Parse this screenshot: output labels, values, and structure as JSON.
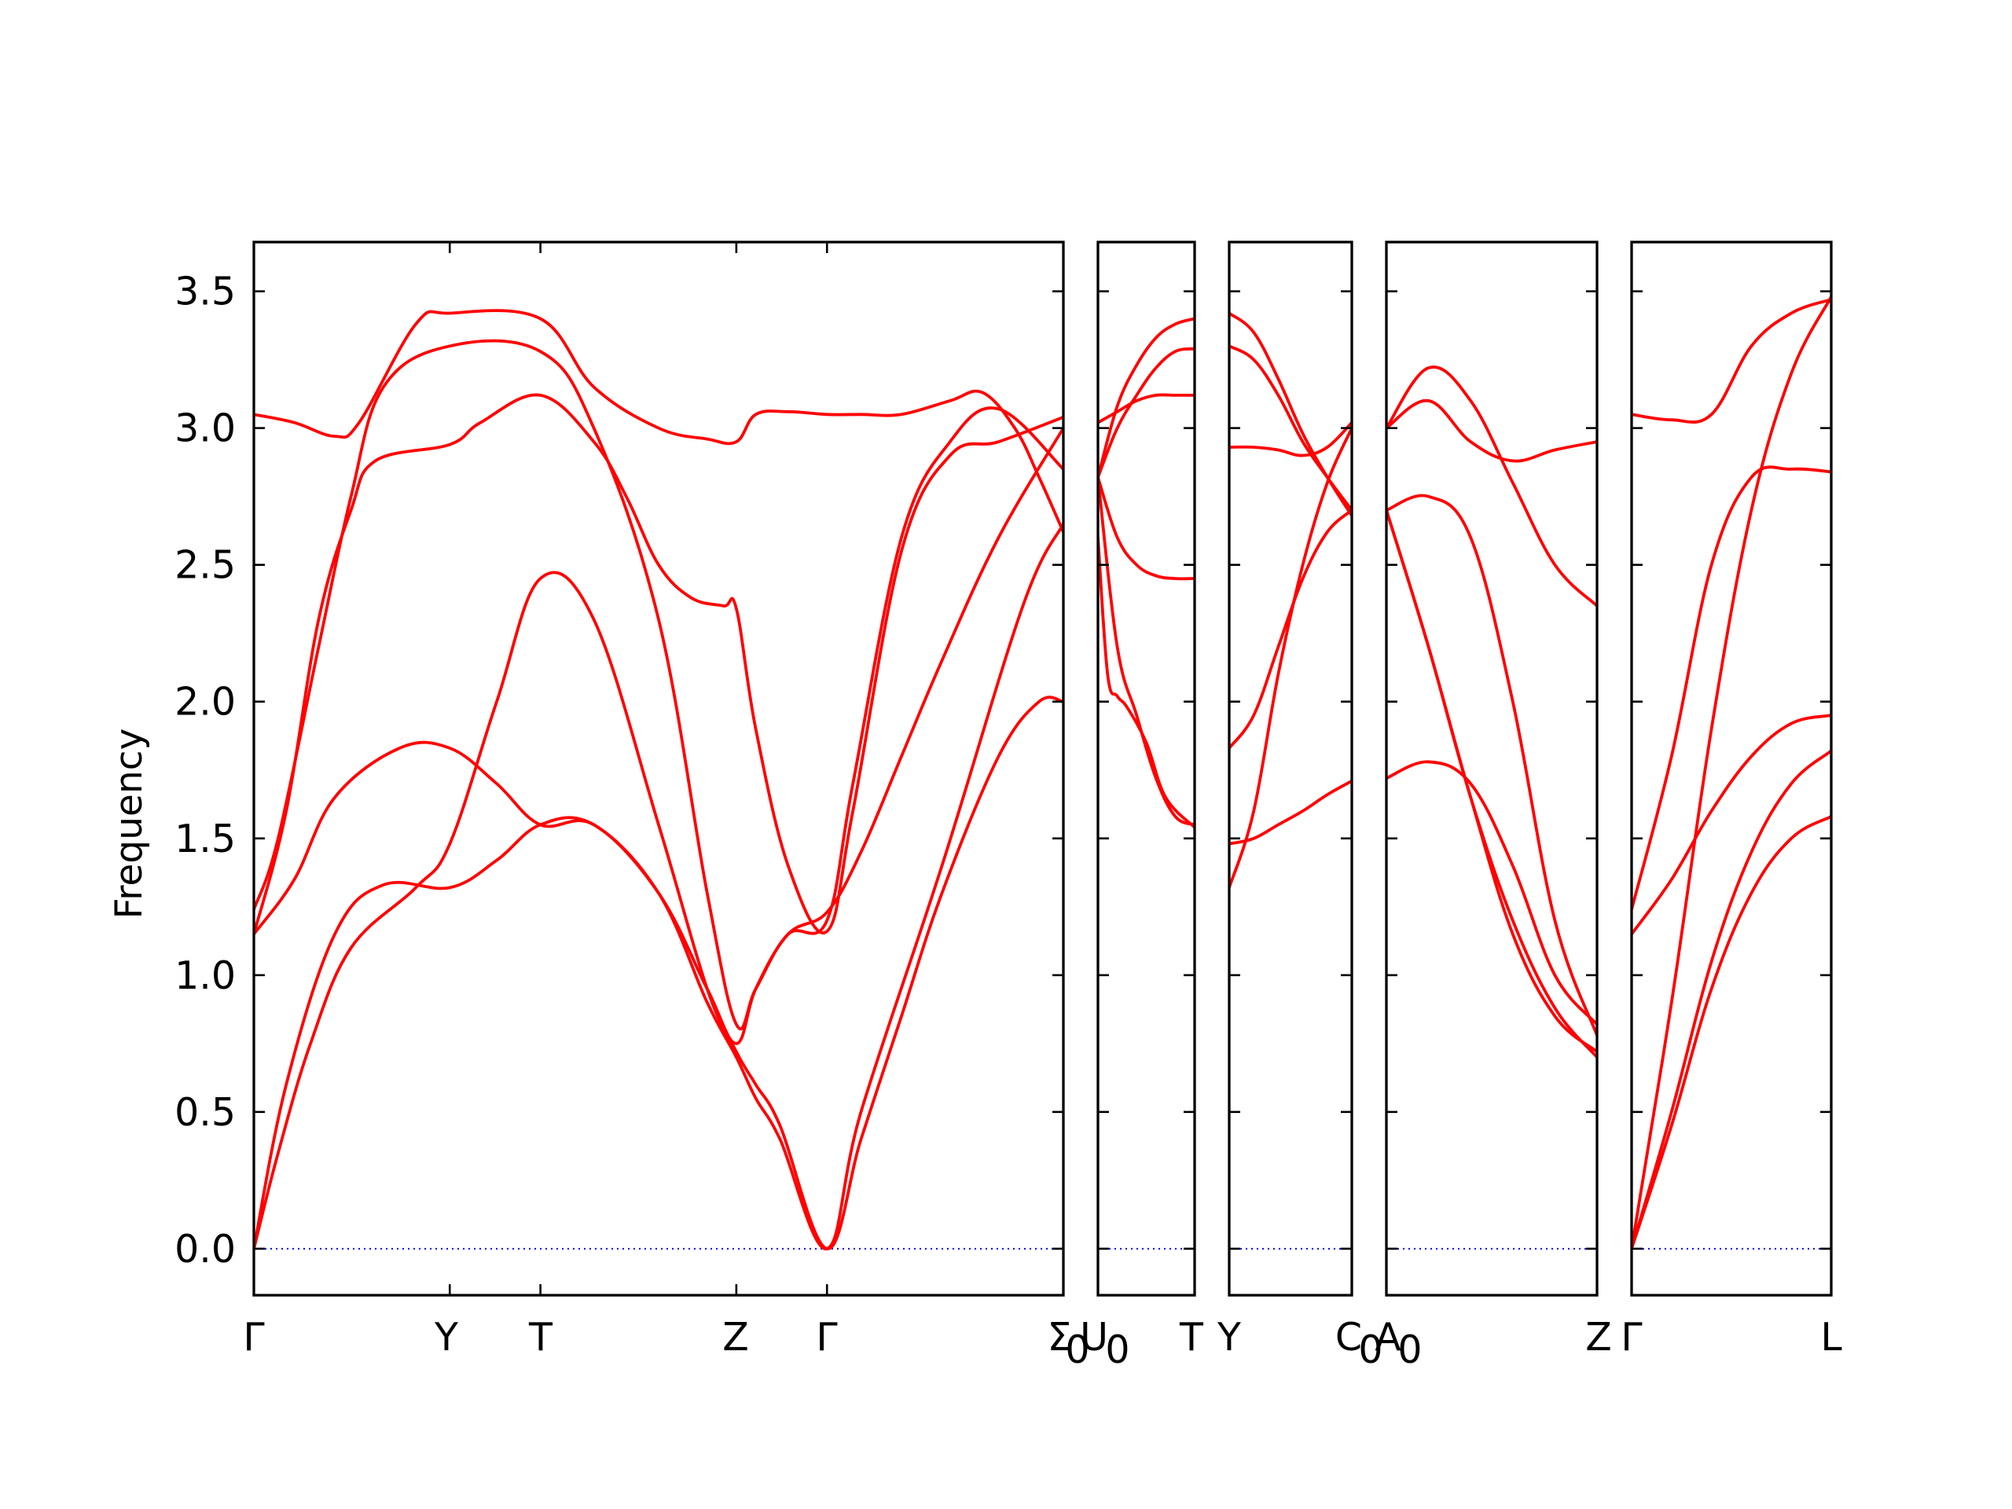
{
  "chart_data": {
    "type": "line",
    "title": "",
    "xlabel": "",
    "ylabel": "Frequency",
    "ylim": [
      -0.17,
      3.68
    ],
    "yticks": [
      "0.0",
      "0.5",
      "1.0",
      "1.5",
      "2.0",
      "2.5",
      "3.0",
      "3.5"
    ],
    "grid": false,
    "legend": "none",
    "band_color": "#ff0000",
    "zero_line_color": "#0000ff",
    "panels": [
      {
        "name": "Γ-Y-T-Z-Γ-Σ0",
        "labels": [
          "Γ",
          "Y",
          "T",
          "Z",
          "Γ",
          "Σ",
          "0"
        ],
        "x_positions": [
          0,
          0.242,
          0.354,
          0.596,
          0.708,
          1.0
        ],
        "bands": [
          {
            "x": [
              0,
              0.03,
              0.07,
              0.12,
              0.2,
              0.242,
              0.3,
              0.354,
              0.42,
              0.5,
              0.56,
              0.596,
              0.62,
              0.65,
              0.708,
              0.75,
              0.8,
              0.85,
              0.92,
              0.97,
              1.0
            ],
            "y": [
              0,
              0.35,
              0.75,
              1.1,
              1.32,
              1.48,
              2.0,
              2.45,
              2.3,
              1.55,
              0.95,
              0.72,
              0.6,
              0.45,
              0,
              0.4,
              0.85,
              1.3,
              1.8,
              2.0,
              2.0
            ]
          },
          {
            "x": [
              0,
              0.04,
              0.1,
              0.16,
              0.242,
              0.3,
              0.354,
              0.42,
              0.5,
              0.56,
              0.596,
              0.62,
              0.65,
              0.708,
              0.75,
              0.85,
              0.95,
              1.0
            ],
            "y": [
              0,
              0.6,
              1.15,
              1.33,
              1.32,
              1.42,
              1.55,
              1.55,
              1.3,
              0.9,
              0.7,
              0.55,
              0.4,
              0,
              0.5,
              1.4,
              2.35,
              2.65
            ]
          },
          {
            "x": [
              0,
              0.05,
              0.1,
              0.18,
              0.242,
              0.3,
              0.354,
              0.42,
              0.5,
              0.56,
              0.596,
              0.62,
              0.66,
              0.708,
              0.75,
              0.8,
              0.85,
              0.92,
              1.0
            ],
            "y": [
              1.15,
              1.35,
              1.65,
              1.83,
              1.83,
              1.7,
              1.55,
              1.55,
              1.3,
              0.95,
              0.75,
              0.95,
              1.15,
              1.23,
              1.45,
              1.8,
              2.15,
              2.6,
              3.0
            ]
          },
          {
            "x": [
              0,
              0.03,
              0.08,
              0.12,
              0.16,
              0.242,
              0.354,
              0.42,
              0.5,
              0.56,
              0.596,
              0.62,
              0.66,
              0.708,
              0.74,
              0.8,
              0.86,
              0.92,
              1.0
            ],
            "y": [
              1.24,
              1.5,
              2.2,
              2.75,
              3.15,
              3.3,
              3.28,
              3.0,
              2.3,
              1.3,
              0.82,
              0.95,
              1.15,
              1.2,
              1.7,
              2.6,
              2.95,
              3.07,
              2.85
            ]
          },
          {
            "x": [
              0,
              0.04,
              0.08,
              0.12,
              0.15,
              0.242,
              0.28,
              0.354,
              0.42,
              0.46,
              0.5,
              0.54,
              0.58,
              0.596,
              0.62,
              0.66,
              0.708,
              0.74,
              0.8,
              0.86,
              0.92,
              1.0
            ],
            "y": [
              1.15,
              1.6,
              2.3,
              2.7,
              2.88,
              2.94,
              3.02,
              3.12,
              2.95,
              2.75,
              2.5,
              2.38,
              2.35,
              2.34,
              1.9,
              1.4,
              1.16,
              1.6,
              2.55,
              2.9,
              2.95,
              3.04
            ]
          },
          {
            "x": [
              0,
              0.05,
              0.1,
              0.13,
              0.2,
              0.242,
              0.354,
              0.42,
              0.5,
              0.56,
              0.596,
              0.62,
              0.66,
              0.708,
              0.75,
              0.8,
              0.86,
              0.9,
              0.94,
              0.97,
              1.0
            ],
            "y": [
              3.05,
              3.02,
              2.97,
              3.02,
              3.38,
              3.42,
              3.4,
              3.15,
              3.0,
              2.96,
              2.95,
              3.05,
              3.06,
              3.05,
              3.05,
              3.05,
              3.1,
              3.13,
              3.0,
              2.82,
              2.62
            ]
          }
        ]
      },
      {
        "name": "U0-T",
        "labels": [
          "U",
          "0",
          "T"
        ],
        "x_positions": [
          0,
          1.0
        ],
        "bands": [
          {
            "x": [
              0,
              0.2,
              0.4,
              0.6,
              0.8,
              1.0
            ],
            "y": [
              2.82,
              2.2,
              1.95,
              1.72,
              1.58,
              1.55
            ]
          },
          {
            "x": [
              0,
              0.1,
              0.2,
              0.3,
              0.5,
              0.7,
              1.0
            ],
            "y": [
              2.6,
              2.1,
              2.02,
              1.98,
              1.85,
              1.65,
              1.54
            ]
          },
          {
            "x": [
              0,
              0.2,
              0.4,
              0.6,
              0.8,
              1.0
            ],
            "y": [
              2.82,
              2.6,
              2.5,
              2.46,
              2.45,
              2.45
            ]
          },
          {
            "x": [
              0,
              0.2,
              0.4,
              0.6,
              0.8,
              1.0
            ],
            "y": [
              2.82,
              3.0,
              3.12,
              3.22,
              3.28,
              3.29
            ]
          },
          {
            "x": [
              0,
              0.2,
              0.4,
              0.6,
              0.8,
              1.0
            ],
            "y": [
              3.02,
              3.06,
              3.1,
              3.12,
              3.12,
              3.12
            ]
          },
          {
            "x": [
              0,
              0.2,
              0.4,
              0.6,
              0.8,
              1.0
            ],
            "y": [
              2.82,
              3.08,
              3.23,
              3.33,
              3.38,
              3.4
            ]
          }
        ]
      },
      {
        "name": "Y-C0",
        "labels": [
          "Y",
          "C",
          "0"
        ],
        "x_positions": [
          0,
          1.0
        ],
        "bands": [
          {
            "x": [
              0,
              0.2,
              0.4,
              0.6,
              0.8,
              1.0
            ],
            "y": [
              1.32,
              1.6,
              2.1,
              2.5,
              2.8,
              3.0
            ]
          },
          {
            "x": [
              0,
              0.2,
              0.4,
              0.6,
              0.8,
              1.0
            ],
            "y": [
              1.48,
              1.5,
              1.55,
              1.6,
              1.66,
              1.71
            ]
          },
          {
            "x": [
              0,
              0.2,
              0.4,
              0.6,
              0.8,
              1.0
            ],
            "y": [
              1.83,
              1.95,
              2.2,
              2.45,
              2.62,
              2.7
            ]
          },
          {
            "x": [
              0,
              0.2,
              0.4,
              0.6,
              0.8,
              1.0
            ],
            "y": [
              2.93,
              2.93,
              2.92,
              2.9,
              2.93,
              3.02
            ]
          },
          {
            "x": [
              0,
              0.2,
              0.4,
              0.6,
              0.8,
              1.0
            ],
            "y": [
              3.3,
              3.25,
              3.12,
              2.95,
              2.82,
              2.7
            ]
          },
          {
            "x": [
              0,
              0.2,
              0.4,
              0.6,
              0.8,
              1.0
            ],
            "y": [
              3.42,
              3.35,
              3.18,
              2.98,
              2.82,
              2.68
            ]
          }
        ]
      },
      {
        "name": "A0-Z",
        "labels": [
          "A",
          "0",
          "Z"
        ],
        "x_positions": [
          0,
          1.0
        ],
        "bands": [
          {
            "x": [
              0,
              0.2,
              0.4,
              0.6,
              0.8,
              1.0
            ],
            "y": [
              2.7,
              2.2,
              1.65,
              1.15,
              0.85,
              0.72
            ]
          },
          {
            "x": [
              0,
              0.2,
              0.4,
              0.6,
              0.8,
              1.0
            ],
            "y": [
              2.7,
              2.2,
              1.65,
              1.2,
              0.88,
              0.7
            ]
          },
          {
            "x": [
              0,
              0.2,
              0.4,
              0.6,
              0.8,
              1.0
            ],
            "y": [
              1.72,
              1.78,
              1.7,
              1.4,
              1.0,
              0.82
            ]
          },
          {
            "x": [
              0,
              0.2,
              0.4,
              0.6,
              0.8,
              1.0
            ],
            "y": [
              2.7,
              2.75,
              2.6,
              2.0,
              1.2,
              0.78
            ]
          },
          {
            "x": [
              0,
              0.2,
              0.4,
              0.6,
              0.8,
              1.0
            ],
            "y": [
              3.0,
              3.1,
              2.95,
              2.88,
              2.92,
              2.95
            ]
          },
          {
            "x": [
              0,
              0.2,
              0.4,
              0.6,
              0.8,
              1.0
            ],
            "y": [
              3.0,
              3.22,
              3.1,
              2.8,
              2.5,
              2.35
            ]
          }
        ]
      },
      {
        "name": "Γ-L",
        "labels": [
          "Γ",
          "L"
        ],
        "x_positions": [
          0,
          1.0
        ],
        "bands": [
          {
            "x": [
              0,
              0.2,
              0.4,
              0.6,
              0.8,
              1.0
            ],
            "y": [
              0,
              0.45,
              0.95,
              1.3,
              1.5,
              1.58
            ]
          },
          {
            "x": [
              0,
              0.2,
              0.4,
              0.6,
              0.8,
              1.0
            ],
            "y": [
              0,
              0.5,
              1.05,
              1.45,
              1.7,
              1.82
            ]
          },
          {
            "x": [
              0,
              0.2,
              0.4,
              0.6,
              0.8,
              1.0
            ],
            "y": [
              1.15,
              1.35,
              1.6,
              1.8,
              1.92,
              1.95
            ]
          },
          {
            "x": [
              0,
              0.2,
              0.4,
              0.6,
              0.8,
              1.0
            ],
            "y": [
              1.24,
              1.8,
              2.5,
              2.82,
              2.85,
              2.84
            ]
          },
          {
            "x": [
              0,
              0.2,
              0.4,
              0.6,
              0.8,
              1.0
            ],
            "y": [
              3.05,
              3.03,
              3.05,
              3.3,
              3.42,
              3.47
            ]
          },
          {
            "x": [
              0,
              0.2,
              0.4,
              0.6,
              0.8,
              1.0
            ],
            "y": [
              0,
              0.9,
              1.9,
              2.7,
              3.2,
              3.48
            ]
          }
        ]
      }
    ]
  }
}
